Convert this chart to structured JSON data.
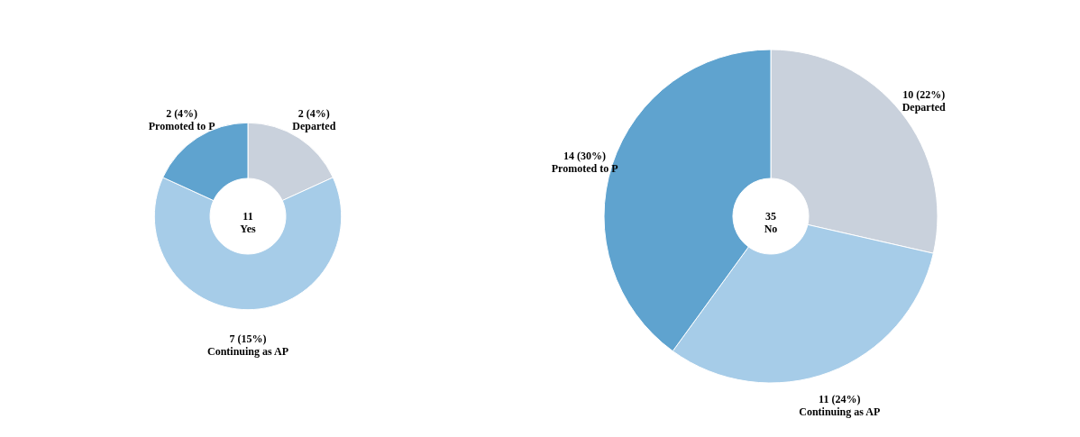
{
  "chart_data": [
    {
      "type": "donut",
      "categories": [
        "Departed",
        "Continuing as AP",
        "Promoted to P"
      ],
      "values": [
        2,
        7,
        2
      ],
      "colors": [
        "#c9d1dc",
        "#a6cce8",
        "#5fa3cf"
      ],
      "value_labels": [
        "2 (4%)",
        "7 (15%)",
        "2 (4%)"
      ],
      "annotations": [
        "11",
        "Yes"
      ],
      "legend": false
    },
    {
      "type": "donut",
      "categories": [
        "Departed",
        "Continuing as AP",
        "Promoted to P"
      ],
      "values": [
        10,
        11,
        14
      ],
      "colors": [
        "#c9d1dc",
        "#a6cce8",
        "#5fa3cf"
      ],
      "value_labels": [
        "10 (22%)",
        "11 (24%)",
        "14 (30%)"
      ],
      "annotations": [
        "35",
        "No"
      ],
      "legend": false
    }
  ]
}
